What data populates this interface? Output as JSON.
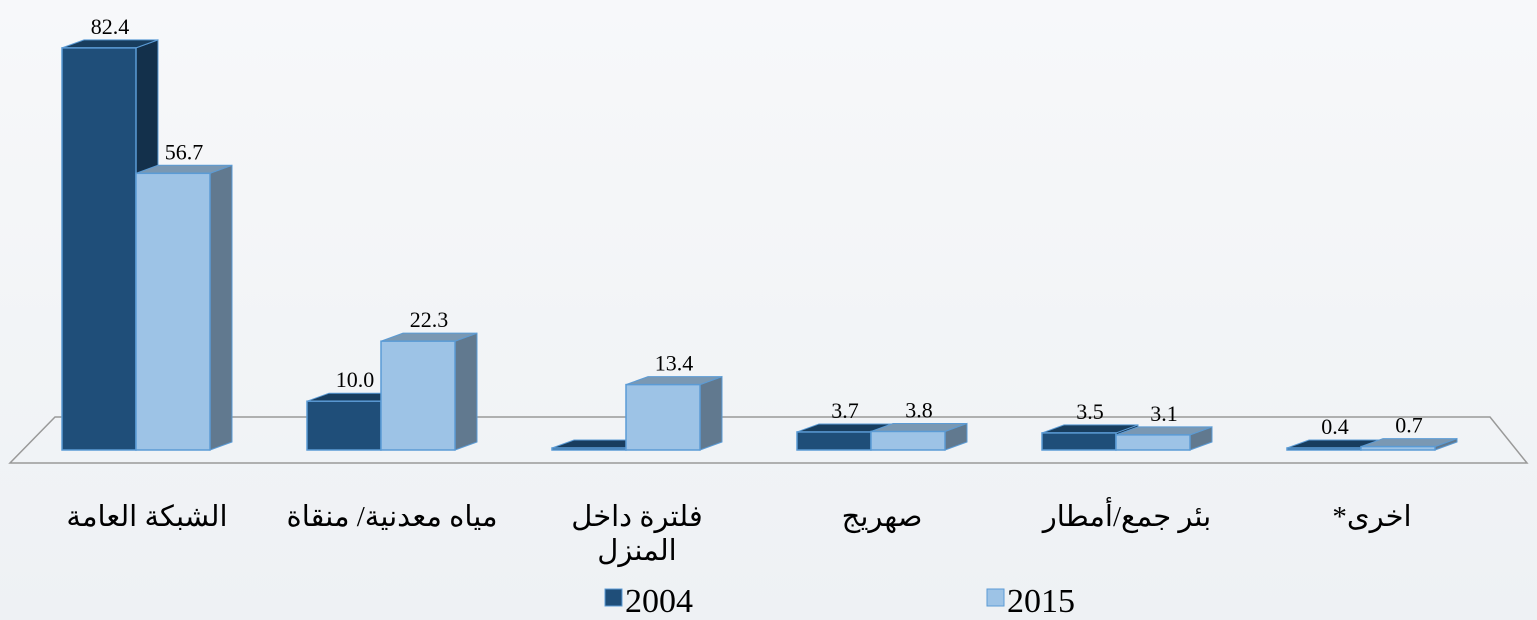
{
  "chart_data": {
    "type": "bar3d",
    "categories": [
      "الشبكة العامة",
      "مياه معدنية/ منقاة",
      "فلترة داخل المنزل",
      "صهريج",
      "بئر جمع/أمطار",
      "اخرى*"
    ],
    "series": [
      {
        "name": "2004",
        "color": "#1f4e79",
        "values": [
          82.4,
          10.0,
          0,
          3.7,
          3.5,
          0.4
        ],
        "value_labels": [
          "82.4",
          "10.0",
          null,
          "3.7",
          "3.5",
          "0.4"
        ]
      },
      {
        "name": "2015",
        "color": "#9dc3e6",
        "values": [
          56.7,
          22.3,
          13.4,
          3.8,
          3.1,
          0.7
        ],
        "value_labels": [
          "56.7",
          "22.3",
          "13.4",
          "3.8",
          "3.1",
          "0.7"
        ]
      }
    ],
    "legend": "bottom"
  }
}
